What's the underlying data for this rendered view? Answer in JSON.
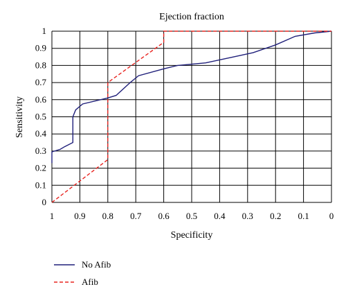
{
  "chart_data": {
    "type": "line",
    "title": "Ejection fraction",
    "xlabel": "Specificity",
    "ylabel": "Sensitivity",
    "xlim": [
      1,
      0
    ],
    "ylim": [
      0,
      1
    ],
    "x_ticks": [
      "1",
      "0.9",
      "0.8",
      "0.7",
      "0.6",
      "0.5",
      "0.4",
      "0.3",
      "0.2",
      "0.1",
      "0"
    ],
    "y_ticks": [
      "0",
      "0.1",
      "0.2",
      "0.3",
      "0.4",
      "0.5",
      "0.6",
      "0.7",
      "0.8",
      "0.9",
      "1"
    ],
    "grid": true,
    "legend_position": "bottom-left",
    "series": [
      {
        "name": "No Afib",
        "color": "#1f1f7a",
        "style": "solid",
        "points": [
          [
            1.0,
            0.23
          ],
          [
            1.0,
            0.295
          ],
          [
            0.97,
            0.31
          ],
          [
            0.955,
            0.325
          ],
          [
            0.925,
            0.35
          ],
          [
            0.925,
            0.5
          ],
          [
            0.915,
            0.54
          ],
          [
            0.89,
            0.575
          ],
          [
            0.8,
            0.61
          ],
          [
            0.77,
            0.625
          ],
          [
            0.72,
            0.7
          ],
          [
            0.69,
            0.74
          ],
          [
            0.6,
            0.78
          ],
          [
            0.55,
            0.8
          ],
          [
            0.45,
            0.815
          ],
          [
            0.35,
            0.85
          ],
          [
            0.28,
            0.875
          ],
          [
            0.2,
            0.92
          ],
          [
            0.13,
            0.97
          ],
          [
            0.06,
            0.99
          ],
          [
            0.0,
            1.0
          ]
        ]
      },
      {
        "name": "Afib",
        "color": "#e8231f",
        "style": "dashed",
        "points": [
          [
            1.0,
            0.0
          ],
          [
            0.8,
            0.25
          ],
          [
            0.8,
            0.7
          ],
          [
            0.6,
            0.935
          ],
          [
            0.6,
            1.0
          ],
          [
            0.0,
            1.0
          ]
        ]
      }
    ]
  }
}
